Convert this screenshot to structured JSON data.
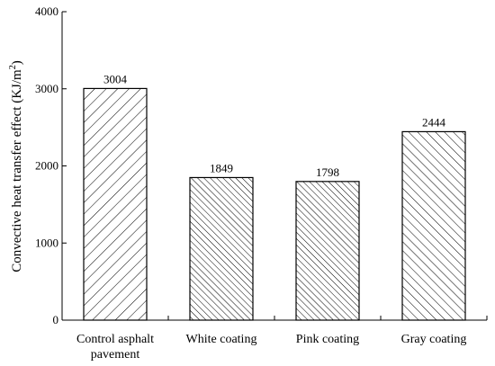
{
  "chart_data": {
    "type": "bar",
    "categories": [
      [
        "Control asphalt",
        "pavement"
      ],
      [
        "White coating"
      ],
      [
        "Pink coating"
      ],
      [
        "Gray coating"
      ]
    ],
    "values": [
      3004,
      1849,
      1798,
      2444
    ],
    "data_labels": [
      "3004",
      "1849",
      "1798",
      "2444"
    ],
    "patterns": [
      "hatch-sparse-forward",
      "hatch-dense-back",
      "hatch-dense-back",
      "hatch-medium-back"
    ],
    "ylabel": "Convective heat transfer effect (KJ/m",
    "ylabel_superscript": "2",
    "ylabel_suffix": ")",
    "ylim": [
      0,
      4000
    ],
    "yticks": [
      0,
      1000,
      2000,
      3000,
      4000
    ],
    "ytick_labels": [
      "0",
      "1000",
      "2000",
      "3000",
      "4000"
    ],
    "grid": false,
    "legend": "none",
    "colors": {
      "bar_fill": "#ffffff",
      "bar_stroke": "#000000",
      "hatch": "#000000"
    }
  }
}
